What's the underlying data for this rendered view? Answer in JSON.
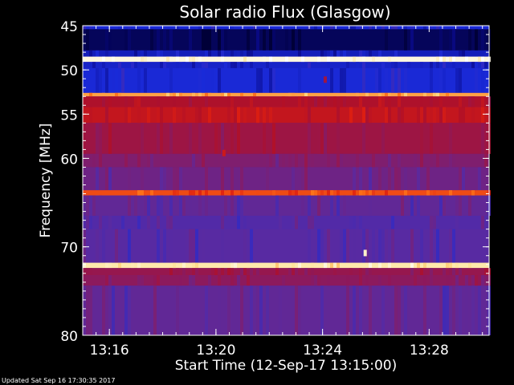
{
  "title": "Solar radio Flux (Glasgow)",
  "footer": "Updated Sat Sep 16 17:30:35 2017",
  "colors": {
    "background": "#000000",
    "axis": "#ffffff",
    "text": "#ffffff"
  },
  "chart_data": {
    "type": "heatmap",
    "title": "Solar radio Flux (Glasgow)",
    "xlabel": "Start Time (12-Sep-17 13:15:00)",
    "ylabel": "Frequency [MHz]",
    "x_unit": "minutes after 13:00",
    "xlim": [
      15.0,
      30.25
    ],
    "ylim": [
      45,
      80
    ],
    "y_inverted": true,
    "x_ticks": [
      {
        "value": 16,
        "label": "13:16"
      },
      {
        "value": 20,
        "label": "13:20"
      },
      {
        "value": 24,
        "label": "13:24"
      },
      {
        "value": 28,
        "label": "13:28"
      }
    ],
    "y_ticks": [
      {
        "value": 45,
        "label": "45"
      },
      {
        "value": 50,
        "label": "50"
      },
      {
        "value": 55,
        "label": "55"
      },
      {
        "value": 60,
        "label": "60"
      },
      {
        "value": 70,
        "label": "70"
      },
      {
        "value": 80,
        "label": "80"
      }
    ],
    "colormap": [
      "#000033",
      "#0a0a8a",
      "#1a2ad8",
      "#5a2aa0",
      "#8a1a60",
      "#b01028",
      "#e02010",
      "#ff7a1a",
      "#ffe08a",
      "#ffffff"
    ],
    "frequency_bands": [
      {
        "from": 45.0,
        "to": 45.4,
        "level": 0.22
      },
      {
        "from": 45.4,
        "to": 47.8,
        "level": 0.05
      },
      {
        "from": 47.8,
        "to": 48.5,
        "level": 0.18
      },
      {
        "from": 48.5,
        "to": 49.1,
        "level": 0.97
      },
      {
        "from": 49.1,
        "to": 49.8,
        "level": 0.2
      },
      {
        "from": 49.8,
        "to": 52.6,
        "level": 0.22
      },
      {
        "from": 52.6,
        "to": 53.0,
        "level": 0.82
      },
      {
        "from": 53.0,
        "to": 54.2,
        "level": 0.55
      },
      {
        "from": 54.2,
        "to": 56.0,
        "level": 0.6
      },
      {
        "from": 56.0,
        "to": 59.5,
        "level": 0.5
      },
      {
        "from": 59.5,
        "to": 61.0,
        "level": 0.42
      },
      {
        "from": 61.0,
        "to": 63.6,
        "level": 0.38
      },
      {
        "from": 63.6,
        "to": 64.2,
        "level": 0.72
      },
      {
        "from": 64.2,
        "to": 66.5,
        "level": 0.35
      },
      {
        "from": 66.5,
        "to": 68.0,
        "level": 0.32
      },
      {
        "from": 68.0,
        "to": 71.8,
        "level": 0.33
      },
      {
        "from": 71.8,
        "to": 72.4,
        "level": 0.92
      },
      {
        "from": 72.4,
        "to": 73.2,
        "level": 0.48
      },
      {
        "from": 73.2,
        "to": 74.4,
        "level": 0.45
      },
      {
        "from": 74.4,
        "to": 80.0,
        "level": 0.35
      }
    ],
    "bright_points": [
      {
        "x": 25.6,
        "y": 70.7,
        "level": 0.95
      },
      {
        "x": 20.3,
        "y": 59.4,
        "level": 0.62
      },
      {
        "x": 24.1,
        "y": 51.1,
        "level": 0.5
      }
    ]
  }
}
